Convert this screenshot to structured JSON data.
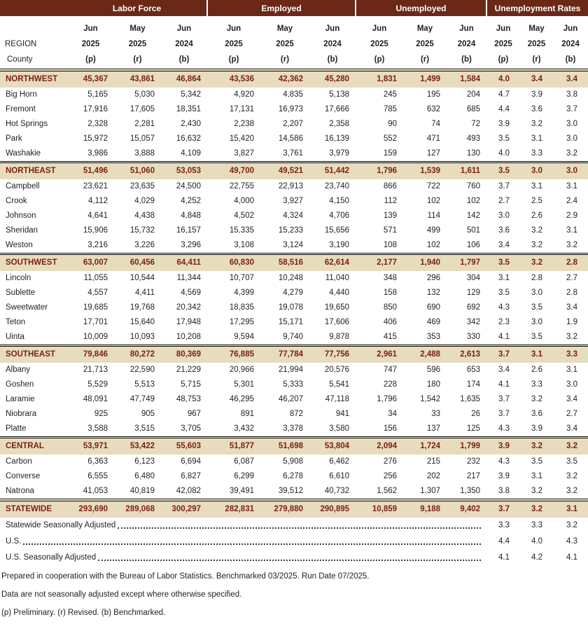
{
  "colors": {
    "header_bg": "#6b2817",
    "header_text": "#ffffff",
    "region_row_bg": "#e8dcbe",
    "region_text": "#7b2115",
    "body_text": "#1f1f1f"
  },
  "header": {
    "groups": [
      {
        "label": "Labor Force"
      },
      {
        "label": "Employed"
      },
      {
        "label": "Unemployed"
      },
      {
        "label": "Unemployment Rates"
      }
    ],
    "region_label": "REGION",
    "county_label": "County",
    "subcolumns": [
      {
        "month": "Jun",
        "year": "2025",
        "note": "(p)"
      },
      {
        "month": "May",
        "year": "2025",
        "note": "(r)"
      },
      {
        "month": "Jun",
        "year": "2024",
        "note": "(b)"
      }
    ]
  },
  "sections": [
    {
      "region": "NORTHWEST",
      "values": [
        "45,367",
        "43,861",
        "46,864",
        "43,536",
        "42,362",
        "45,280",
        "1,831",
        "1,499",
        "1,584",
        "4.0",
        "3.4",
        "3.4"
      ],
      "counties": [
        {
          "name": "Big Horn",
          "values": [
            "5,165",
            "5,030",
            "5,342",
            "4,920",
            "4,835",
            "5,138",
            "245",
            "195",
            "204",
            "4.7",
            "3.9",
            "3.8"
          ]
        },
        {
          "name": "Fremont",
          "values": [
            "17,916",
            "17,605",
            "18,351",
            "17,131",
            "16,973",
            "17,666",
            "785",
            "632",
            "685",
            "4.4",
            "3.6",
            "3.7"
          ]
        },
        {
          "name": "Hot Springs",
          "values": [
            "2,328",
            "2,281",
            "2,430",
            "2,238",
            "2,207",
            "2,358",
            "90",
            "74",
            "72",
            "3.9",
            "3.2",
            "3.0"
          ]
        },
        {
          "name": "Park",
          "values": [
            "15,972",
            "15,057",
            "16,632",
            "15,420",
            "14,586",
            "16,139",
            "552",
            "471",
            "493",
            "3.5",
            "3.1",
            "3.0"
          ]
        },
        {
          "name": "Washakie",
          "values": [
            "3,986",
            "3,888",
            "4,109",
            "3,827",
            "3,761",
            "3,979",
            "159",
            "127",
            "130",
            "4.0",
            "3.3",
            "3.2"
          ]
        }
      ]
    },
    {
      "region": "NORTHEAST",
      "values": [
        "51,496",
        "51,060",
        "53,053",
        "49,700",
        "49,521",
        "51,442",
        "1,796",
        "1,539",
        "1,611",
        "3.5",
        "3.0",
        "3.0"
      ],
      "counties": [
        {
          "name": "Campbell",
          "values": [
            "23,621",
            "23,635",
            "24,500",
            "22,755",
            "22,913",
            "23,740",
            "866",
            "722",
            "760",
            "3.7",
            "3.1",
            "3.1"
          ]
        },
        {
          "name": "Crook",
          "values": [
            "4,112",
            "4,029",
            "4,252",
            "4,000",
            "3,927",
            "4,150",
            "112",
            "102",
            "102",
            "2.7",
            "2.5",
            "2.4"
          ]
        },
        {
          "name": "Johnson",
          "values": [
            "4,641",
            "4,438",
            "4,848",
            "4,502",
            "4,324",
            "4,706",
            "139",
            "114",
            "142",
            "3.0",
            "2.6",
            "2.9"
          ]
        },
        {
          "name": "Sheridan",
          "values": [
            "15,906",
            "15,732",
            "16,157",
            "15,335",
            "15,233",
            "15,656",
            "571",
            "499",
            "501",
            "3.6",
            "3.2",
            "3.1"
          ]
        },
        {
          "name": "Weston",
          "values": [
            "3,216",
            "3,226",
            "3,296",
            "3,108",
            "3,124",
            "3,190",
            "108",
            "102",
            "106",
            "3.4",
            "3.2",
            "3.2"
          ]
        }
      ]
    },
    {
      "region": "SOUTHWEST",
      "values": [
        "63,007",
        "60,456",
        "64,411",
        "60,830",
        "58,516",
        "62,614",
        "2,177",
        "1,940",
        "1,797",
        "3.5",
        "3.2",
        "2.8"
      ],
      "counties": [
        {
          "name": "Lincoln",
          "values": [
            "11,055",
            "10,544",
            "11,344",
            "10,707",
            "10,248",
            "11,040",
            "348",
            "296",
            "304",
            "3.1",
            "2.8",
            "2.7"
          ]
        },
        {
          "name": "Sublette",
          "values": [
            "4,557",
            "4,411",
            "4,569",
            "4,399",
            "4,279",
            "4,440",
            "158",
            "132",
            "129",
            "3.5",
            "3.0",
            "2.8"
          ]
        },
        {
          "name": "Sweetwater",
          "values": [
            "19,685",
            "19,768",
            "20,342",
            "18,835",
            "19,078",
            "19,650",
            "850",
            "690",
            "692",
            "4.3",
            "3.5",
            "3.4"
          ]
        },
        {
          "name": "Teton",
          "values": [
            "17,701",
            "15,640",
            "17,948",
            "17,295",
            "15,171",
            "17,606",
            "406",
            "469",
            "342",
            "2.3",
            "3.0",
            "1.9"
          ]
        },
        {
          "name": "Uinta",
          "values": [
            "10,009",
            "10,093",
            "10,208",
            "9,594",
            "9,740",
            "9,878",
            "415",
            "353",
            "330",
            "4.1",
            "3.5",
            "3.2"
          ]
        }
      ]
    },
    {
      "region": "SOUTHEAST",
      "values": [
        "79,846",
        "80,272",
        "80,369",
        "76,885",
        "77,784",
        "77,756",
        "2,961",
        "2,488",
        "2,613",
        "3.7",
        "3.1",
        "3.3"
      ],
      "counties": [
        {
          "name": "Albany",
          "values": [
            "21,713",
            "22,590",
            "21,229",
            "20,966",
            "21,994",
            "20,576",
            "747",
            "596",
            "653",
            "3.4",
            "2.6",
            "3.1"
          ]
        },
        {
          "name": "Goshen",
          "values": [
            "5,529",
            "5,513",
            "5,715",
            "5,301",
            "5,333",
            "5,541",
            "228",
            "180",
            "174",
            "4.1",
            "3.3",
            "3.0"
          ]
        },
        {
          "name": "Laramie",
          "values": [
            "48,091",
            "47,749",
            "48,753",
            "46,295",
            "46,207",
            "47,118",
            "1,796",
            "1,542",
            "1,635",
            "3.7",
            "3.2",
            "3.4"
          ]
        },
        {
          "name": "Niobrara",
          "values": [
            "925",
            "905",
            "967",
            "891",
            "872",
            "941",
            "34",
            "33",
            "26",
            "3.7",
            "3.6",
            "2.7"
          ]
        },
        {
          "name": "Platte",
          "values": [
            "3,588",
            "3,515",
            "3,705",
            "3,432",
            "3,378",
            "3,580",
            "156",
            "137",
            "125",
            "4.3",
            "3.9",
            "3.4"
          ]
        }
      ]
    },
    {
      "region": "CENTRAL",
      "values": [
        "53,971",
        "53,422",
        "55,603",
        "51,877",
        "51,698",
        "53,804",
        "2,094",
        "1,724",
        "1,799",
        "3.9",
        "3.2",
        "3.2"
      ],
      "counties": [
        {
          "name": "Carbon",
          "values": [
            "6,363",
            "6,123",
            "6,694",
            "6,087",
            "5,908",
            "6,462",
            "276",
            "215",
            "232",
            "4.3",
            "3.5",
            "3.5"
          ]
        },
        {
          "name": "Converse",
          "values": [
            "6,555",
            "6,480",
            "6,827",
            "6,299",
            "6,278",
            "6,610",
            "256",
            "202",
            "217",
            "3.9",
            "3.1",
            "3.2"
          ]
        },
        {
          "name": "Natrona",
          "values": [
            "41,053",
            "40,819",
            "42,082",
            "39,491",
            "39,512",
            "40,732",
            "1,562",
            "1,307",
            "1,350",
            "3.8",
            "3.2",
            "3.2"
          ]
        }
      ]
    }
  ],
  "statewide": {
    "label": "STATEWIDE",
    "values": [
      "293,690",
      "289,068",
      "300,297",
      "282,831",
      "279,880",
      "290,895",
      "10,859",
      "9,188",
      "9,402",
      "3.7",
      "3.2",
      "3.1"
    ]
  },
  "adjusted_rows": [
    {
      "label": "Statewide Seasonally Adjusted",
      "rates": [
        "3.3",
        "3.3",
        "3.2"
      ]
    },
    {
      "label": "U.S.",
      "rates": [
        "4.4",
        "4.0",
        "4.3"
      ]
    },
    {
      "label": "U.S. Seasonally Adjusted",
      "rates": [
        "4.1",
        "4.2",
        "4.1"
      ]
    }
  ],
  "footnotes": [
    "Prepared in cooperation with the Bureau of Labor Statistics.  Benchmarked 03/2025. Run Date 07/2025.",
    "Data are not seasonally adjusted except where otherwise specified.",
    "(p) Preliminary. (r) Revised. (b) Benchmarked."
  ]
}
